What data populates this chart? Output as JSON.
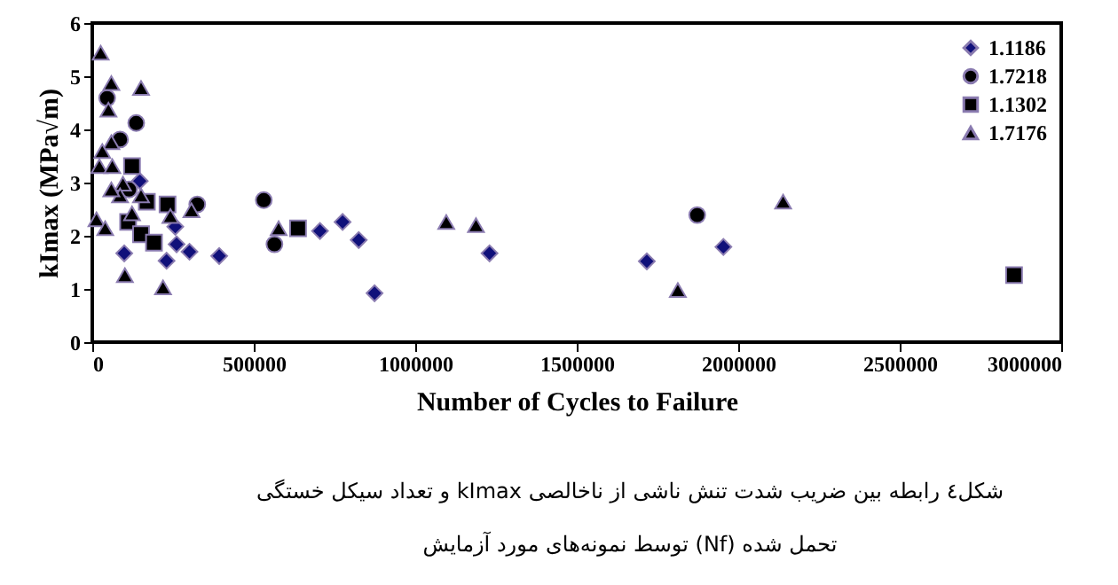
{
  "chart_data": {
    "type": "scatter",
    "xlabel": "Number of Cycles to Failure",
    "ylabel": "kImax (MPa√m)",
    "xlim": [
      0,
      3000000
    ],
    "xticks": [
      0,
      500000,
      1000000,
      1500000,
      2000000,
      2500000,
      3000000
    ],
    "ylim": [
      0,
      6
    ],
    "yticks": [
      0,
      1,
      2,
      3,
      4,
      5,
      6
    ],
    "grid": false,
    "legend": "top right",
    "annotations": [
      "شکل٤ رابطه بین ضریب شدت تنش ناشی از ناخالصی kImax و تعداد سیکل خستگی",
      "تحمل شده (Nf) توسط نمونه‌های مورد آزمایش"
    ],
    "series": [
      {
        "name": "1.1186",
        "color": "#10107a",
        "marker": "diamond",
        "x": [
          147000,
          99000,
          202000,
          230000,
          301000,
          261000,
          257000,
          343000,
          393000,
          560000,
          705000,
          775000,
          825000,
          874000,
          1230000,
          1717000,
          1954000
        ],
        "values": [
          3.03,
          1.67,
          null,
          1.53,
          1.7,
          1.84,
          2.17,
          null,
          1.62,
          null,
          2.09,
          2.26,
          1.92,
          0.92,
          1.67,
          1.52,
          1.79
        ]
      },
      {
        "name": "1.7218",
        "color": "#000000",
        "marker": "circle",
        "x": [
          46000,
          86000,
          136000,
          114000,
          169000,
          325000,
          531000,
          564000,
          1873000
        ],
        "values": [
          4.59,
          3.81,
          4.12,
          2.87,
          null,
          2.59,
          2.67,
          1.84,
          2.39
        ]
      },
      {
        "name": "1.1302",
        "color": "#000000",
        "marker": "square",
        "x": [
          123000,
          111000,
          151000,
          191000,
          169000,
          233000,
          637000,
          2854000
        ],
        "values": [
          3.31,
          2.26,
          2.03,
          1.87,
          2.64,
          2.59,
          2.14,
          1.26
        ]
      },
      {
        "name": "1.7176",
        "color": "#000000",
        "marker": "triangle",
        "x": [
          26000,
          59000,
          151000,
          50000,
          59000,
          31000,
          22000,
          62000,
          77000,
          95000,
          86000,
          59000,
          13000,
          40000,
          123000,
          151000,
          242000,
          307000,
          101000,
          219000,
          577000,
          1096000,
          1188000,
          1813000,
          2139000
        ],
        "values": [
          5.44,
          4.87,
          4.78,
          4.37,
          3.76,
          3.59,
          3.31,
          3.31,
          null,
          2.98,
          2.76,
          2.87,
          2.31,
          2.14,
          2.42,
          2.76,
          2.37,
          2.48,
          1.26,
          1.03,
          2.14,
          2.26,
          2.2,
          0.98,
          2.64
        ]
      }
    ]
  }
}
